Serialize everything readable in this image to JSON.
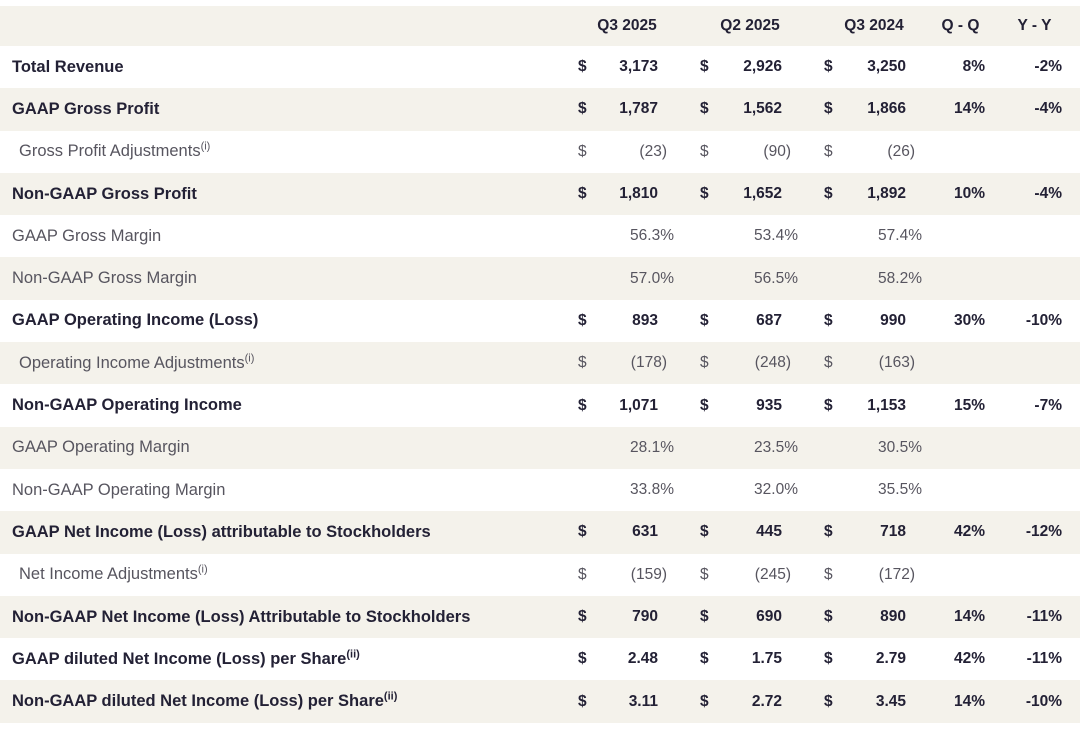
{
  "colors": {
    "row_alt_background": "#f4f2eb",
    "row_background": "#ffffff",
    "bold_text": "#232135",
    "regular_text": "#57555f"
  },
  "chart_data": {
    "type": "table",
    "currency_symbol": "$",
    "columns": [
      "Q3 2025",
      "Q2 2025",
      "Q3 2024",
      "Q - Q",
      "Y - Y"
    ],
    "rows": [
      {
        "label": "Total Revenue",
        "sup": "",
        "bold": true,
        "indent": false,
        "dollar": true,
        "values": [
          "3,173",
          "2,926",
          "3,250"
        ],
        "qq": "8%",
        "yy": "-2%"
      },
      {
        "label": "GAAP Gross Profit",
        "sup": "",
        "bold": true,
        "indent": false,
        "dollar": true,
        "values": [
          "1,787",
          "1,562",
          "1,866"
        ],
        "qq": "14%",
        "yy": "-4%"
      },
      {
        "label": "Gross Profit Adjustments",
        "sup": "(i)",
        "bold": false,
        "indent": true,
        "dollar": true,
        "values": [
          "(23)",
          "(90)",
          "(26)"
        ],
        "qq": "",
        "yy": ""
      },
      {
        "label": "Non-GAAP Gross Profit",
        "sup": "",
        "bold": true,
        "indent": false,
        "dollar": true,
        "values": [
          "1,810",
          "1,652",
          "1,892"
        ],
        "qq": "10%",
        "yy": "-4%"
      },
      {
        "label": "GAAP Gross Margin",
        "sup": "",
        "bold": false,
        "indent": false,
        "dollar": false,
        "values": [
          "56.3%",
          "53.4%",
          "57.4%"
        ],
        "qq": "",
        "yy": ""
      },
      {
        "label": "Non-GAAP Gross Margin",
        "sup": "",
        "bold": false,
        "indent": false,
        "dollar": false,
        "values": [
          "57.0%",
          "56.5%",
          "58.2%"
        ],
        "qq": "",
        "yy": ""
      },
      {
        "label": "GAAP Operating Income (Loss)",
        "sup": "",
        "bold": true,
        "indent": false,
        "dollar": true,
        "values": [
          "893",
          "687",
          "990"
        ],
        "qq": "30%",
        "yy": "-10%"
      },
      {
        "label": "Operating Income Adjustments",
        "sup": "(i)",
        "bold": false,
        "indent": true,
        "dollar": true,
        "values": [
          "(178)",
          "(248)",
          "(163)"
        ],
        "qq": "",
        "yy": ""
      },
      {
        "label": "Non-GAAP Operating Income",
        "sup": "",
        "bold": true,
        "indent": false,
        "dollar": true,
        "values": [
          "1,071",
          "935",
          "1,153"
        ],
        "qq": "15%",
        "yy": "-7%"
      },
      {
        "label": "GAAP Operating Margin",
        "sup": "",
        "bold": false,
        "indent": false,
        "dollar": false,
        "values": [
          "28.1%",
          "23.5%",
          "30.5%"
        ],
        "qq": "",
        "yy": ""
      },
      {
        "label": "Non-GAAP Operating Margin",
        "sup": "",
        "bold": false,
        "indent": false,
        "dollar": false,
        "values": [
          "33.8%",
          "32.0%",
          "35.5%"
        ],
        "qq": "",
        "yy": ""
      },
      {
        "label": "GAAP Net Income (Loss) attributable to Stockholders",
        "sup": "",
        "bold": true,
        "indent": false,
        "dollar": true,
        "values": [
          "631",
          "445",
          "718"
        ],
        "qq": "42%",
        "yy": "-12%"
      },
      {
        "label": "Net Income Adjustments",
        "sup": "(i)",
        "bold": false,
        "indent": true,
        "dollar": true,
        "values": [
          "(159)",
          "(245)",
          "(172)"
        ],
        "qq": "",
        "yy": ""
      },
      {
        "label": "Non-GAAP Net Income (Loss) Attributable to Stockholders",
        "sup": "",
        "bold": true,
        "indent": false,
        "dollar": true,
        "values": [
          "790",
          "690",
          "890"
        ],
        "qq": "14%",
        "yy": "-11%"
      },
      {
        "label": "GAAP diluted Net Income (Loss) per Share",
        "sup": "(ii)",
        "bold": true,
        "indent": false,
        "dollar": true,
        "values": [
          "2.48",
          "1.75",
          "2.79"
        ],
        "qq": "42%",
        "yy": "-11%"
      },
      {
        "label": "Non-GAAP diluted Net Income (Loss) per Share",
        "sup": "(ii)",
        "bold": true,
        "indent": false,
        "dollar": true,
        "values": [
          "3.11",
          "2.72",
          "3.45"
        ],
        "qq": "14%",
        "yy": "-10%"
      }
    ]
  }
}
